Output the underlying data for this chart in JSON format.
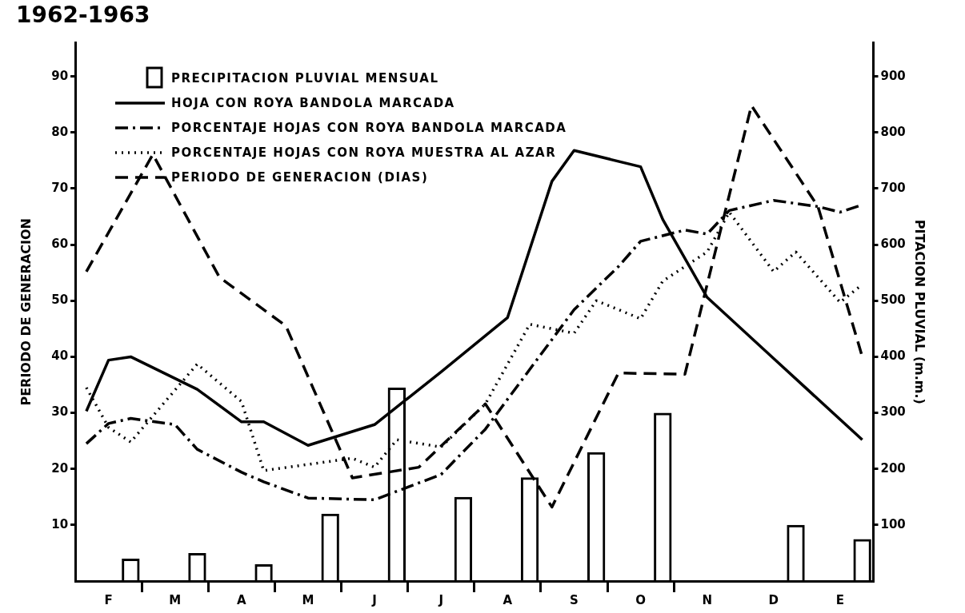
{
  "chart_data": {
    "type": "line",
    "title": "1962-1963",
    "ylabel": "PERIODO DE GENERACION",
    "y2label": "PITACION PLUVIAL (m.m.)",
    "categories": [
      null,
      "F",
      null,
      null,
      "M",
      null,
      null,
      "A",
      null,
      null,
      "M",
      null,
      null,
      "J",
      null,
      null,
      "J",
      null,
      null,
      "A",
      null,
      null,
      "S",
      null,
      null,
      "O",
      null,
      null,
      "N",
      null,
      null,
      "D",
      null,
      null,
      "E",
      null
    ],
    "ylim": [
      0,
      96
    ],
    "yticks": [
      10,
      20,
      30,
      40,
      50,
      60,
      70,
      80,
      90
    ],
    "y2lim": [
      0,
      960
    ],
    "y2ticks": [
      100,
      200,
      300,
      400,
      500,
      600,
      700,
      800,
      900
    ],
    "grid": false,
    "legend": "top left",
    "marker": "none",
    "series": [
      {
        "name": "PRECIPITACION PLUVIAL MENSUAL",
        "type": "bar",
        "axis": "y2",
        "color": "#000000",
        "values": [
          null,
          null,
          40,
          null,
          null,
          50,
          null,
          null,
          30,
          null,
          null,
          120,
          null,
          null,
          345,
          null,
          null,
          150,
          null,
          null,
          185,
          null,
          null,
          230,
          null,
          null,
          300,
          null,
          null,
          null,
          null,
          null,
          100,
          null,
          null,
          75
        ]
      },
      {
        "name": "HOJA CON ROYA BANDOLA MARCADA",
        "line_style": "solid",
        "color": "#000000",
        "values": [
          30.3,
          39.4,
          40,
          null,
          null,
          34.2,
          null,
          28.4,
          28.4,
          null,
          24.2,
          null,
          null,
          27.9,
          null,
          null,
          37.3,
          null,
          null,
          47,
          null,
          71.3,
          76.8,
          null,
          null,
          73.9,
          64.5,
          null,
          50.6,
          null,
          null,
          39.7,
          null,
          null,
          null,
          25.2
        ]
      },
      {
        "name": "PORCENTAJE HOJAS CON ROYA  BANDOLA MARCADA",
        "line_style": "dashdot",
        "color": "#000000",
        "values": [
          24.5,
          28.1,
          29,
          null,
          27.9,
          23.5,
          null,
          19.4,
          17.7,
          null,
          14.8,
          null,
          null,
          14.5,
          null,
          null,
          19,
          null,
          27.1,
          null,
          null,
          null,
          48.4,
          null,
          56.1,
          60.6,
          null,
          62.6,
          61.9,
          66.1,
          null,
          67.9,
          null,
          66.8,
          65.8,
          67.1
        ]
      },
      {
        "name": "PORCENTAJE HOJAS CON ROYA MUESTRA AL AZAR",
        "line_style": "dotted",
        "color": "#000000",
        "values": [
          34.5,
          27.4,
          24.8,
          null,
          null,
          38.7,
          null,
          32,
          19.7,
          null,
          null,
          null,
          21.9,
          20.3,
          25.2,
          null,
          23.9,
          null,
          31.6,
          null,
          45.8,
          null,
          44.2,
          50,
          null,
          46.8,
          53.5,
          null,
          58.7,
          65.8,
          null,
          55.2,
          58.7,
          null,
          49.7,
          52.9
        ]
      },
      {
        "name": "PERIODO DE GENERACION (DIAS)",
        "line_style": "dashed",
        "color": "#000000",
        "values": [
          55.2,
          null,
          null,
          76.1,
          null,
          null,
          54.2,
          null,
          null,
          45.5,
          null,
          null,
          18.4,
          null,
          null,
          20.3,
          null,
          null,
          31.6,
          null,
          null,
          13.2,
          null,
          null,
          37.1,
          null,
          null,
          36.9,
          null,
          null,
          84.8,
          null,
          null,
          66.8,
          null,
          40
        ]
      }
    ]
  }
}
